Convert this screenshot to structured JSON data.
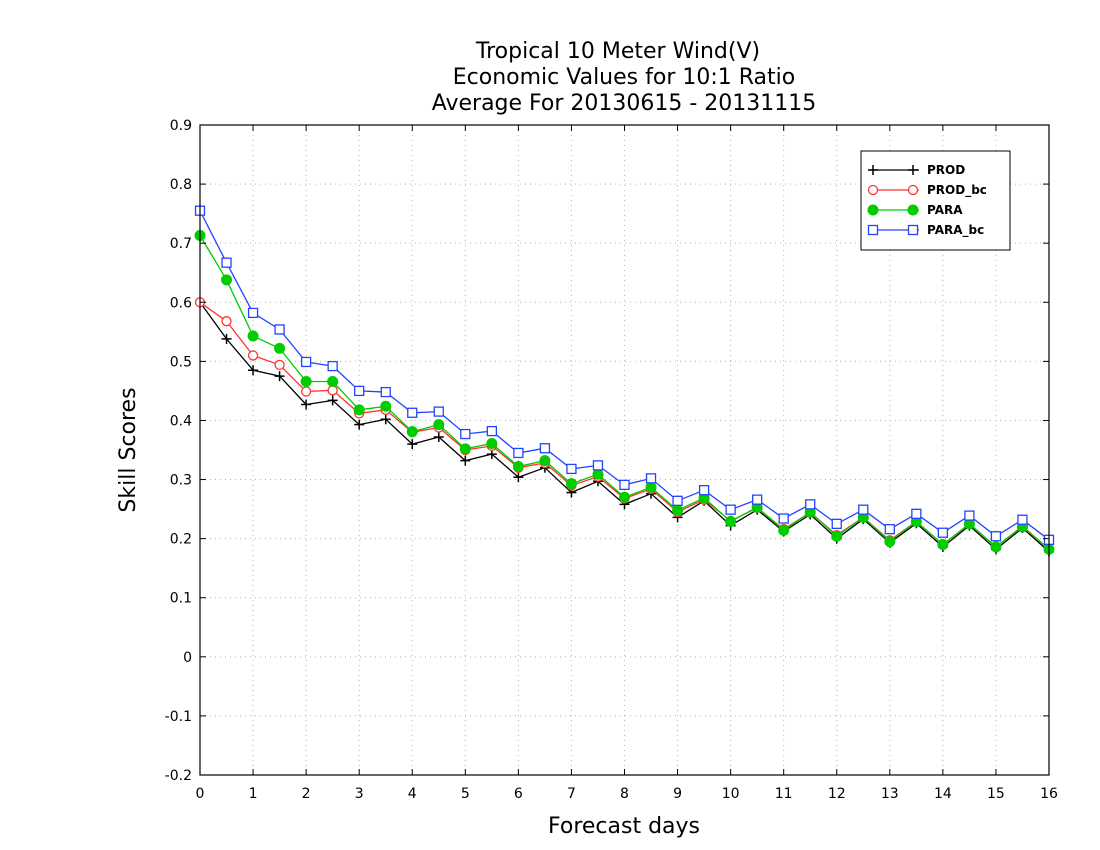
{
  "chart_data": {
    "type": "line",
    "title": [
      "Tropical 10 Meter Wind(V)",
      "Economic Values for 10:1 Ratio",
      "Average For 20130615 - 20131115"
    ],
    "xlabel": "Forecast days",
    "ylabel": "Skill Scores",
    "xlim": [
      0,
      16
    ],
    "ylim": [
      -0.2,
      0.9
    ],
    "xticks": [
      "0",
      "1",
      "2",
      "3",
      "4",
      "5",
      "6",
      "7",
      "8",
      "9",
      "10",
      "11",
      "12",
      "13",
      "14",
      "15",
      "16"
    ],
    "yticks": [
      "0.9",
      "0.8",
      "0.7",
      "0.6",
      "0.5",
      "0.4",
      "0.3",
      "0.2",
      "0.1",
      "0",
      "-0.1",
      "-0.2"
    ],
    "grid": true,
    "legend_position": "top-right",
    "x": [
      0,
      0.5,
      1,
      1.5,
      2,
      2.5,
      3,
      3.5,
      4,
      4.5,
      5,
      5.5,
      6,
      6.5,
      7,
      7.5,
      8,
      8.5,
      9,
      9.5,
      10,
      10.5,
      11,
      11.5,
      12,
      12.5,
      13,
      13.5,
      14,
      14.5,
      15,
      15.5,
      16
    ],
    "series": [
      {
        "name": "PROD",
        "color": "#000000",
        "marker": "plus",
        "values": [
          0.6,
          0.538,
          0.485,
          0.475,
          0.427,
          0.434,
          0.393,
          0.402,
          0.36,
          0.372,
          0.332,
          0.343,
          0.304,
          0.32,
          0.278,
          0.297,
          0.258,
          0.276,
          0.236,
          0.264,
          0.222,
          0.249,
          0.212,
          0.241,
          0.2,
          0.233,
          0.193,
          0.226,
          0.186,
          0.222,
          0.182,
          0.218,
          0.178
        ]
      },
      {
        "name": "PROD_bc",
        "color": "#ff3333",
        "marker": "circle-open",
        "values": [
          0.6,
          0.568,
          0.51,
          0.494,
          0.449,
          0.451,
          0.412,
          0.418,
          0.38,
          0.388,
          0.35,
          0.357,
          0.32,
          0.328,
          0.29,
          0.305,
          0.268,
          0.284,
          0.245,
          0.266,
          0.23,
          0.252,
          0.216,
          0.244,
          0.206,
          0.236,
          0.197,
          0.229,
          0.19,
          0.225,
          0.186,
          0.221,
          0.182
        ]
      },
      {
        "name": "PARA",
        "color": "#00cc00",
        "marker": "circle-filled",
        "values": [
          0.713,
          0.638,
          0.543,
          0.522,
          0.466,
          0.466,
          0.418,
          0.424,
          0.381,
          0.393,
          0.352,
          0.361,
          0.322,
          0.332,
          0.293,
          0.309,
          0.27,
          0.287,
          0.248,
          0.269,
          0.229,
          0.253,
          0.214,
          0.245,
          0.204,
          0.236,
          0.195,
          0.229,
          0.19,
          0.225,
          0.186,
          0.22,
          0.182
        ]
      },
      {
        "name": "PARA_bc",
        "color": "#2244ff",
        "marker": "square-open",
        "values": [
          0.755,
          0.667,
          0.582,
          0.554,
          0.499,
          0.492,
          0.45,
          0.448,
          0.413,
          0.415,
          0.377,
          0.382,
          0.345,
          0.353,
          0.318,
          0.324,
          0.291,
          0.302,
          0.264,
          0.282,
          0.249,
          0.266,
          0.234,
          0.258,
          0.225,
          0.249,
          0.216,
          0.242,
          0.21,
          0.239,
          0.204,
          0.232,
          0.198
        ]
      }
    ]
  }
}
